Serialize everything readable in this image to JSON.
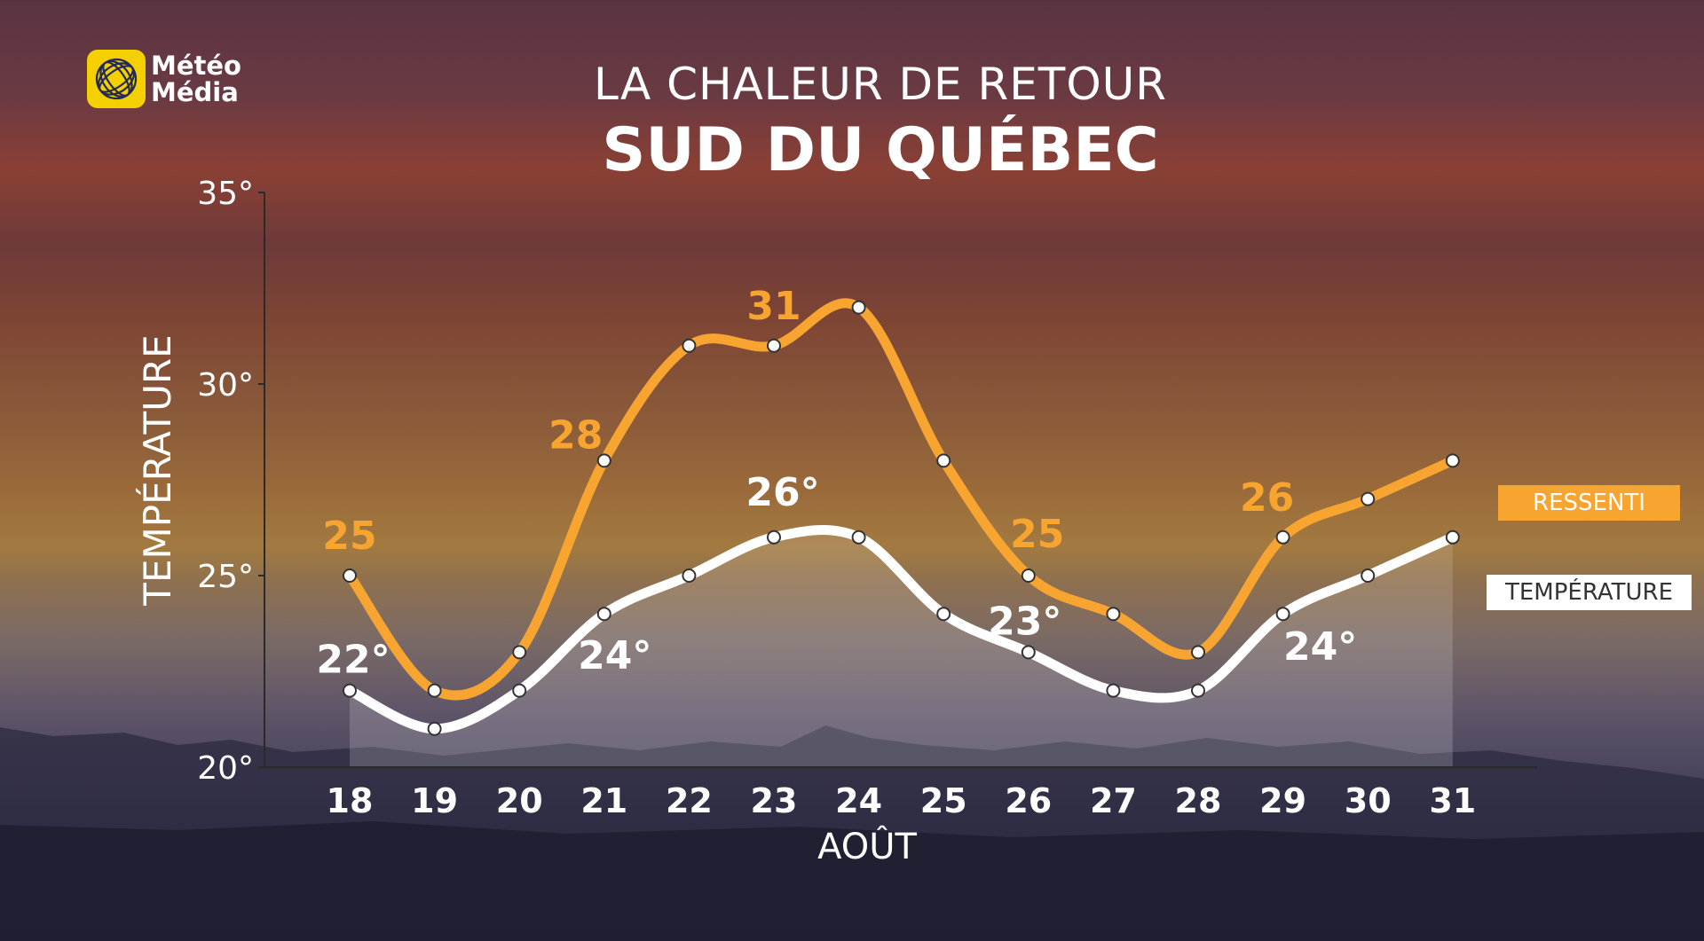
{
  "brand": {
    "line1": "Météo",
    "line2": "Média",
    "icon": "globe-icon",
    "badge_color": "#f5d000"
  },
  "title": {
    "line1": "LA CHALEUR DE RETOUR",
    "line2": "SUD DU QUÉBEC"
  },
  "legend": [
    {
      "label": "RESSENTI",
      "color": "#f7a530"
    },
    {
      "label": "TEMPÉRATURE",
      "color": "#ffffff"
    }
  ],
  "chart_data": {
    "type": "line",
    "xlabel": "AOÛT",
    "ylabel": "TEMPÉRATURE",
    "ylim": [
      20,
      35
    ],
    "yticks": [
      "20°",
      "25°",
      "30°",
      "35°"
    ],
    "categories": [
      "18",
      "19",
      "20",
      "21",
      "22",
      "23",
      "24",
      "25",
      "26",
      "27",
      "28",
      "29",
      "30",
      "31"
    ],
    "grid": false,
    "legend_position": "right",
    "series": [
      {
        "name": "RESSENTI",
        "color": "#f7a530",
        "values": [
          25,
          22,
          23,
          28,
          31,
          31,
          32,
          28,
          25,
          24,
          23,
          26,
          27,
          28
        ]
      },
      {
        "name": "TEMPÉRATURE",
        "color": "#ffffff",
        "values": [
          22,
          21,
          22,
          24,
          25,
          26,
          26,
          24,
          23,
          22,
          22,
          24,
          25,
          26
        ]
      }
    ],
    "annotations": [
      {
        "series": 0,
        "index": 0,
        "text": "25"
      },
      {
        "series": 0,
        "index": 3,
        "text": "28"
      },
      {
        "series": 0,
        "index": 5,
        "text": "31"
      },
      {
        "series": 0,
        "index": 8,
        "text": "25"
      },
      {
        "series": 0,
        "index": 11,
        "text": "26"
      },
      {
        "series": 1,
        "index": 0,
        "text": "22°"
      },
      {
        "series": 1,
        "index": 3,
        "text": "24°"
      },
      {
        "series": 1,
        "index": 5,
        "text": "26°"
      },
      {
        "series": 1,
        "index": 8,
        "text": "23°"
      },
      {
        "series": 1,
        "index": 11,
        "text": "24°"
      }
    ]
  }
}
